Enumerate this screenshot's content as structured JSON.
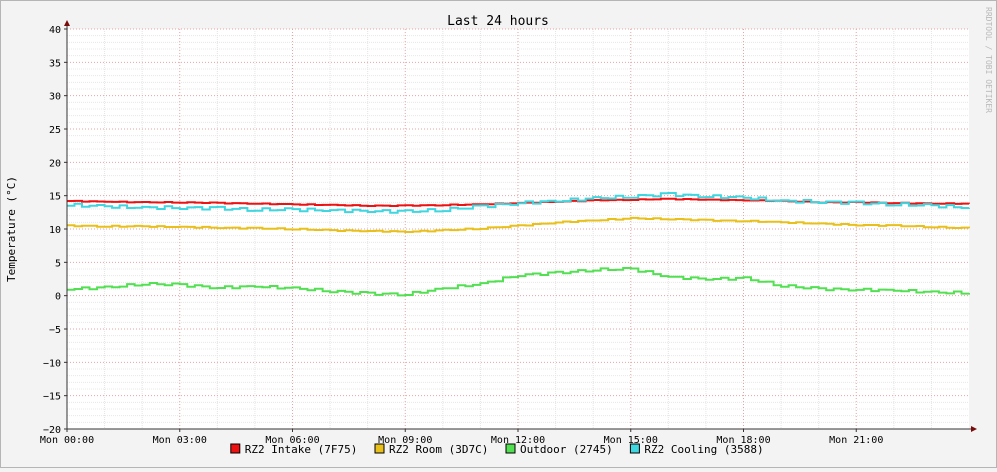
{
  "chart_data": {
    "type": "line",
    "title": "Last 24 hours",
    "ylabel": "Temperature (°C)",
    "watermark": "RRDTOOL / TOBI OETIKER",
    "ylim": [
      -20,
      40
    ],
    "y_ticks": [
      40,
      35,
      30,
      25,
      20,
      15,
      10,
      5,
      0,
      -5,
      -10,
      -15,
      -20
    ],
    "x_range_hours": [
      0,
      24
    ],
    "x_ticks": [
      {
        "hour": 0,
        "label": "Mon 00:00"
      },
      {
        "hour": 3,
        "label": "Mon 03:00"
      },
      {
        "hour": 6,
        "label": "Mon 06:00"
      },
      {
        "hour": 9,
        "label": "Mon 09:00"
      },
      {
        "hour": 12,
        "label": "Mon 12:00"
      },
      {
        "hour": 15,
        "label": "Mon 15:00"
      },
      {
        "hour": 18,
        "label": "Mon 18:00"
      },
      {
        "hour": 21,
        "label": "Mon 21:00"
      }
    ],
    "x_hours": [
      0,
      1,
      2,
      3,
      4,
      5,
      6,
      7,
      8,
      9,
      10,
      11,
      12,
      13,
      14,
      15,
      16,
      17,
      18,
      19,
      20,
      21,
      22,
      23,
      24
    ],
    "series": [
      {
        "name": "RZ2 Intake (7F75)",
        "color": "#ee1111",
        "values": [
          14.2,
          14.1,
          14.0,
          14.0,
          13.9,
          13.8,
          13.7,
          13.6,
          13.5,
          13.5,
          13.6,
          13.7,
          13.9,
          14.1,
          14.3,
          14.4,
          14.5,
          14.4,
          14.3,
          14.2,
          14.0,
          14.0,
          13.9,
          13.8,
          13.8
        ]
      },
      {
        "name": "RZ2 Room (3D7C)",
        "color": "#e8c019",
        "values": [
          10.5,
          10.4,
          10.4,
          10.3,
          10.2,
          10.1,
          10.0,
          9.8,
          9.7,
          9.6,
          9.8,
          10.1,
          10.5,
          11.0,
          11.3,
          11.6,
          11.5,
          11.3,
          11.2,
          11.0,
          10.8,
          10.6,
          10.5,
          10.3,
          10.1
        ]
      },
      {
        "name": "Outdoor (2745)",
        "color": "#52e052",
        "values": [
          1.0,
          1.2,
          1.8,
          1.6,
          1.2,
          1.4,
          1.1,
          0.7,
          0.3,
          0.2,
          1.1,
          1.8,
          3.1,
          3.4,
          3.9,
          4.0,
          2.8,
          2.5,
          2.6,
          1.5,
          1.0,
          0.9,
          0.8,
          0.5,
          0.4
        ]
      },
      {
        "name": "RZ2 Cooling (3588)",
        "color": "#3fd6e0",
        "values": [
          13.6,
          13.4,
          13.2,
          13.2,
          13.1,
          12.9,
          12.9,
          12.8,
          12.7,
          12.6,
          12.9,
          13.4,
          13.9,
          14.2,
          14.6,
          14.9,
          15.2,
          14.9,
          14.7,
          14.2,
          14.1,
          13.9,
          13.7,
          13.5,
          13.2
        ]
      }
    ]
  }
}
